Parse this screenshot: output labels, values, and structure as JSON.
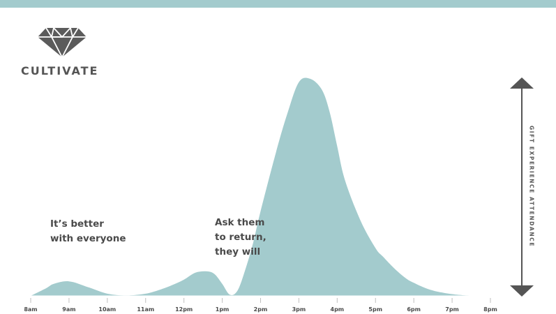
{
  "brand": {
    "name": "CULTIVATE",
    "logo_icon": "diamond-icon"
  },
  "colors": {
    "accent": "#a3cbcd",
    "text": "#4a4a4a",
    "arrow": "#555555"
  },
  "annotations": [
    {
      "text": "It’s better\nwith everyone"
    },
    {
      "text": "Ask them\nto return,\nthey will"
    }
  ],
  "chart_data": {
    "type": "area",
    "title": "",
    "xlabel": "",
    "ylabel": "GIFT  EXPERIENCE  ATTENDANCE",
    "categories": [
      "8am",
      "9am",
      "10am",
      "11am",
      "12pm",
      "1pm",
      "2pm",
      "3pm",
      "4pm",
      "5pm",
      "6pm",
      "7pm",
      "8pm"
    ],
    "x": [
      0,
      0.4,
      0.6,
      1.0,
      1.5,
      2.0,
      2.5,
      3.0,
      3.4,
      3.7,
      4.0,
      4.3,
      4.6,
      4.8,
      5.0,
      5.2,
      5.4,
      5.6,
      5.8,
      6.0,
      6.4,
      6.7,
      7.0,
      7.3,
      7.6,
      7.8,
      8.0,
      8.2,
      8.6,
      9.0,
      9.2,
      9.5,
      9.8,
      10.0,
      10.3,
      10.6,
      11.0,
      11.3,
      11.6,
      12.0
    ],
    "values": [
      0,
      3.5,
      5.5,
      6.7,
      4.0,
      1.0,
      0.2,
      1.0,
      3.0,
      5.0,
      7.5,
      10.7,
      11.3,
      10.0,
      5.5,
      0.5,
      2.5,
      12.0,
      24.0,
      39.0,
      66.0,
      84.0,
      98.5,
      100.0,
      95.0,
      85.0,
      69.0,
      53.5,
      35.0,
      22.0,
      18.0,
      12.5,
      8.0,
      6.0,
      3.6,
      2.0,
      0.8,
      0.3,
      0.1,
      0
    ],
    "ylim": [
      0,
      100
    ],
    "grid": false,
    "legend": "none"
  }
}
